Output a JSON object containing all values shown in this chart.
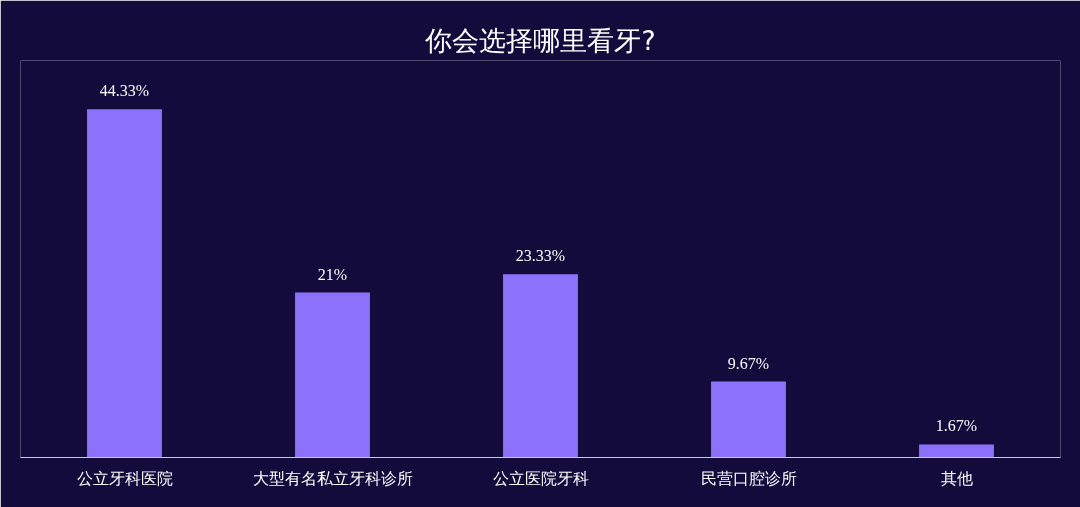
{
  "chart_data": {
    "type": "bar",
    "title": "你会选择哪里看牙?",
    "categories": [
      "公立牙科医院",
      "大型有名私立牙科诊所",
      "公立医院牙科",
      "民营口腔诊所",
      "其他"
    ],
    "values": [
      44.33,
      21,
      23.33,
      9.67,
      1.67
    ],
    "value_labels": [
      "44.33%",
      "21%",
      "23.33%",
      "9.67%",
      "1.67%"
    ],
    "color": "#8c72fb",
    "grid": false
  }
}
